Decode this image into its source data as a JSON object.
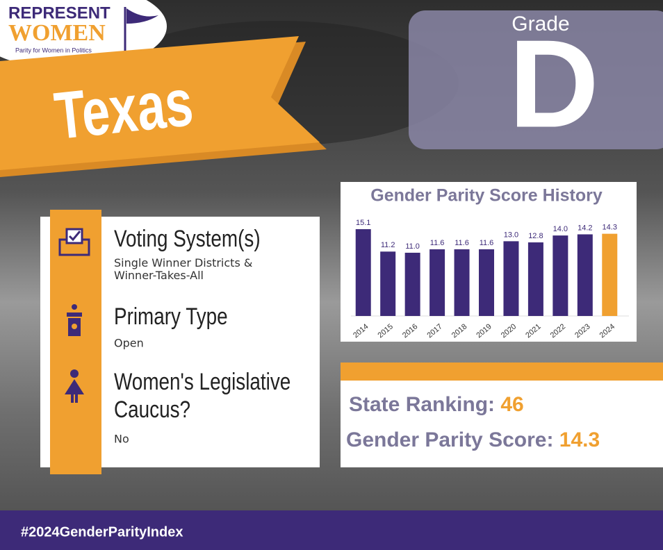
{
  "logo": {
    "line1": "REPRESENT",
    "line2": "WOMEN",
    "tagline": "Parity for Women in Politics"
  },
  "state": "Texas",
  "grade": {
    "label": "Grade",
    "value": "D"
  },
  "info": [
    {
      "title": "Voting System(s)",
      "text": "Single Winner Districts & Winner-Takes-All"
    },
    {
      "title": "Primary Type",
      "text": "Open"
    },
    {
      "title": "Women's Legislative Caucus?",
      "text": "No"
    }
  ],
  "ranking": {
    "label": "State Ranking:",
    "value": 46
  },
  "score": {
    "label": "Gender Parity Score:",
    "value": 14.3
  },
  "footer": "#2024GenderParityIndex",
  "chart_data": {
    "type": "bar",
    "title": "Gender Parity Score History",
    "categories": [
      "2014",
      "2015",
      "2016",
      "2017",
      "2018",
      "2019",
      "2020",
      "2021",
      "2022",
      "2023",
      "2024"
    ],
    "values": [
      15.1,
      11.2,
      11.0,
      11.6,
      11.6,
      11.6,
      13.0,
      12.8,
      14.0,
      14.2,
      14.3
    ],
    "value_labels": [
      "15.1",
      "11.2",
      "11.0",
      "11.6",
      "11.6",
      "11.6",
      "13.0",
      "12.8",
      "14.0",
      "14.2",
      "14.3"
    ],
    "colors": [
      "#3d2a78",
      "#3d2a78",
      "#3d2a78",
      "#3d2a78",
      "#3d2a78",
      "#3d2a78",
      "#3d2a78",
      "#3d2a78",
      "#3d2a78",
      "#3d2a78",
      "#f0a030"
    ]
  }
}
